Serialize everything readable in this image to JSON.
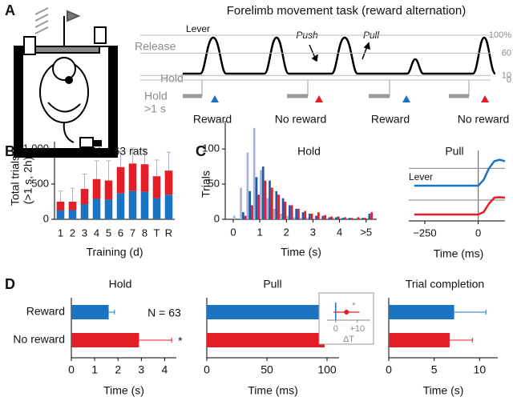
{
  "panel_labels": [
    "A",
    "B",
    "C",
    "D"
  ],
  "panel_a": {
    "title": "Forelimb movement task  (reward alternation)",
    "lever_label": "Lever",
    "release_label": "Release",
    "hold_label": "Hold",
    "push_label": "Push",
    "pull_label": "Pull",
    "hold_time_label": [
      "Hold",
      ">1 s"
    ],
    "outcomes": [
      "Reward",
      "No reward",
      "Reward",
      "No reward"
    ],
    "outcome_colors": [
      "#1a74c2",
      "#e41e26",
      "#1a74c2",
      "#e41e26"
    ],
    "levels": [
      {
        "value": 100,
        "label": "100%"
      },
      60,
      10,
      0
    ]
  },
  "chart_data": [
    {
      "type": "bar",
      "stacked": true,
      "annotation": "N = 63 rats",
      "ylabel": [
        "Total trials",
        "(>1 s, 2h)"
      ],
      "xlabel": "Training (d)",
      "categories": [
        "1",
        "2",
        "3",
        "4",
        "5",
        "6",
        "7",
        "8",
        "T",
        "R"
      ],
      "series": [
        {
          "color": "#1a74c2",
          "values": [
            125,
            130,
            215,
            290,
            280,
            370,
            400,
            390,
            300,
            350
          ]
        },
        {
          "color": "#e41e26",
          "values": [
            125,
            120,
            215,
            280,
            270,
            370,
            390,
            390,
            310,
            340
          ],
          "errors": [
            150,
            190,
            210,
            260,
            280,
            220,
            220,
            220,
            230,
            260
          ]
        }
      ],
      "error_color": "#a9b6cc",
      "ylim": [
        0,
        1100
      ],
      "yticks": [
        0,
        500,
        {
          "value": 1000,
          "label": "1,000"
        }
      ]
    },
    {
      "type": "histogram",
      "title": "Hold",
      "ylabel": "Trials",
      "xlabel": "Time (s)",
      "bins": [
        0,
        0.25,
        0.5,
        0.75,
        1,
        1.25,
        1.5,
        1.75,
        2,
        2.25,
        2.5,
        2.75,
        3,
        3.25,
        3.5,
        3.75,
        4,
        4.25,
        4.5,
        4.75,
        5,
        5.25
      ],
      "series": [
        {
          "color": "#a9b3d8",
          "values": [
            5,
            45,
            95,
            130,
            70,
            30,
            15,
            8,
            5,
            3,
            2,
            2,
            1,
            1,
            0,
            0,
            0,
            0,
            0,
            0,
            0
          ]
        },
        {
          "color": "#1f5aa6",
          "values": [
            0,
            10,
            40,
            60,
            75,
            55,
            40,
            30,
            20,
            15,
            10,
            8,
            5,
            5,
            3,
            3,
            2,
            2,
            1,
            2,
            8
          ]
        },
        {
          "color": "#e0202a",
          "values": [
            0,
            5,
            20,
            35,
            55,
            45,
            35,
            25,
            20,
            15,
            12,
            8,
            10,
            6,
            4,
            4,
            3,
            2,
            3,
            2,
            10
          ]
        }
      ],
      "xlim": [
        -0.3,
        5.4
      ],
      "xticks": [
        0,
        1,
        2,
        3,
        4,
        {
          "value": 5,
          "label": ">5"
        }
      ],
      "ylim": [
        0,
        140
      ],
      "yticks": [
        0,
        50,
        100
      ]
    },
    {
      "type": "line",
      "title": "Pull",
      "annotation": "Lever",
      "xlabel": "Time (ms)",
      "x": [
        -300,
        -250,
        -200,
        -150,
        -100,
        -50,
        0,
        25,
        50,
        75,
        100,
        125
      ],
      "series": [
        {
          "color": "#1a74c2",
          "values": [
            0,
            0,
            0,
            0,
            0,
            0,
            0,
            0.2,
            0.6,
            0.85,
            0.9,
            0.85
          ]
        },
        {
          "color": "#e41e26",
          "values": [
            0,
            0,
            0,
            0,
            0,
            0,
            0,
            0.1,
            0.45,
            0.7,
            0.72,
            0.7
          ]
        }
      ],
      "threshold": 0.6,
      "ylim": [
        0,
        1
      ],
      "xlim": [
        -325,
        125
      ],
      "xticks": [
        {
          "value": -250,
          "label": "−250"
        },
        0
      ]
    },
    {
      "type": "hbar",
      "title": "Hold",
      "annotation": "N = 63",
      "xlabel": "Time (s)",
      "categories": [
        "Reward",
        "No reward"
      ],
      "colors": [
        "#1a74c2",
        "#e41e26"
      ],
      "values": [
        1.6,
        2.9
      ],
      "errors": [
        0.25,
        1.4
      ],
      "significance": [
        null,
        "*"
      ],
      "xlim": [
        0,
        4.5
      ],
      "xticks": [
        0,
        1,
        2,
        3,
        4
      ]
    },
    {
      "type": "hbar",
      "title": "Pull",
      "xlabel": "Time (ms)",
      "colors": [
        "#1a74c2",
        "#e41e26"
      ],
      "values": [
        95,
        98
      ],
      "errors": [
        8,
        15
      ],
      "xlim": [
        0,
        110
      ],
      "xticks": [
        0,
        50,
        100
      ]
    },
    {
      "type": "hbar",
      "title": "Trial completion",
      "xlabel": "Time (s)",
      "colors": [
        "#1a74c2",
        "#e41e26"
      ],
      "values": [
        7.2,
        6.7
      ],
      "errors": [
        3.5,
        2.5
      ],
      "xlim": [
        0,
        12
      ],
      "xticks": [
        0,
        5,
        10
      ]
    },
    {
      "type": "dot",
      "xlabel": "ΔT",
      "annotation": "*",
      "colors": [
        "#1a74c2",
        "#e41e26"
      ],
      "reference": 0,
      "value": 5,
      "error": 6,
      "xlim": [
        -4,
        16
      ],
      "xticks": [
        0,
        {
          "value": 10,
          "label": "+10"
        }
      ]
    }
  ]
}
